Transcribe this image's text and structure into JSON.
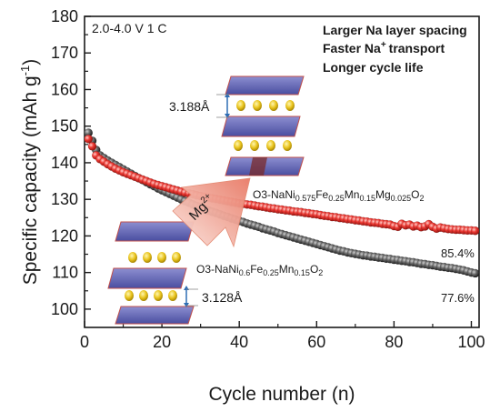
{
  "chart_data": {
    "type": "scatter",
    "xlabel": "Cycle number (n)",
    "ylabel": "Specific capacity (mAh g",
    "ylabel_sup": "-1",
    "ylabel_close": ")",
    "xlim": [
      0,
      102
    ],
    "ylim": [
      95,
      180
    ],
    "xticks": [
      0,
      20,
      40,
      60,
      80,
      100
    ],
    "yticks": [
      100,
      110,
      120,
      130,
      140,
      150,
      160,
      170,
      180
    ],
    "grid": false,
    "legend": "none",
    "series": [
      {
        "color": "#e8302e",
        "x": [
          1,
          2,
          3,
          4,
          5,
          6,
          7,
          8,
          9,
          10,
          11,
          12,
          13,
          14,
          15,
          16,
          17,
          18,
          19,
          20,
          21,
          22,
          23,
          24,
          25,
          26,
          27,
          28,
          29,
          30,
          31,
          32,
          33,
          34,
          35,
          36,
          37,
          38,
          39,
          40,
          41,
          42,
          43,
          44,
          45,
          46,
          47,
          48,
          49,
          50,
          51,
          52,
          53,
          54,
          55,
          56,
          57,
          58,
          59,
          60,
          61,
          62,
          63,
          64,
          65,
          66,
          67,
          68,
          69,
          70,
          71,
          72,
          73,
          74,
          75,
          76,
          77,
          78,
          79,
          80,
          81,
          82,
          83,
          84,
          85,
          86,
          87,
          88,
          89,
          90,
          91,
          92,
          93,
          94,
          95,
          96,
          97,
          98,
          99,
          100,
          101
        ],
        "y": [
          146.5,
          144.5,
          142.0,
          141.0,
          140.3,
          139.6,
          139.0,
          138.4,
          137.9,
          137.4,
          137.0,
          136.6,
          136.2,
          135.8,
          135.4,
          135.0,
          134.6,
          134.2,
          133.9,
          133.6,
          133.3,
          133.0,
          132.7,
          132.4,
          132.1,
          131.8,
          131.6,
          131.4,
          131.1,
          130.9,
          130.7,
          130.5,
          130.3,
          130.1,
          129.9,
          129.7,
          129.5,
          129.3,
          129.1,
          128.9,
          128.8,
          128.6,
          128.5,
          128.3,
          128.1,
          128.0,
          127.8,
          127.6,
          127.5,
          127.3,
          127.2,
          127.0,
          126.9,
          126.7,
          126.6,
          126.5,
          126.3,
          126.2,
          126.0,
          125.9,
          125.7,
          125.5,
          125.4,
          125.2,
          125.1,
          124.9,
          124.8,
          124.6,
          124.5,
          124.3,
          124.2,
          124.0,
          123.9,
          123.7,
          123.6,
          123.5,
          123.3,
          123.2,
          123.1,
          122.7,
          122.5,
          123.3,
          122.9,
          123.1,
          122.6,
          122.8,
          122.4,
          122.6,
          123.2,
          122.5,
          122.0,
          122.3,
          122.1,
          121.9,
          121.8,
          121.7,
          121.7,
          121.6,
          121.5,
          121.5,
          121.4
        ]
      },
      {
        "color": "#4a4a4a",
        "x": [
          1,
          2,
          3,
          4,
          5,
          6,
          7,
          8,
          9,
          10,
          11,
          12,
          13,
          14,
          15,
          16,
          17,
          18,
          19,
          20,
          21,
          22,
          23,
          24,
          25,
          26,
          27,
          28,
          29,
          30,
          31,
          32,
          33,
          34,
          35,
          36,
          37,
          38,
          39,
          40,
          41,
          42,
          43,
          44,
          45,
          46,
          47,
          48,
          49,
          50,
          51,
          52,
          53,
          54,
          55,
          56,
          57,
          58,
          59,
          60,
          61,
          62,
          63,
          64,
          65,
          66,
          67,
          68,
          69,
          70,
          71,
          72,
          73,
          74,
          75,
          76,
          77,
          78,
          79,
          80,
          81,
          82,
          83,
          84,
          85,
          86,
          87,
          88,
          89,
          90,
          91,
          92,
          93,
          94,
          95,
          96,
          97,
          98,
          99,
          100,
          101
        ],
        "y": [
          148.2,
          146.0,
          143.5,
          142.0,
          141.3,
          140.6,
          140.0,
          139.4,
          138.8,
          138.2,
          137.6,
          137.0,
          136.4,
          135.8,
          135.3,
          134.7,
          134.1,
          133.6,
          133.0,
          132.5,
          132.0,
          131.5,
          131.0,
          130.5,
          130.0,
          129.5,
          129.1,
          128.6,
          128.2,
          127.8,
          127.4,
          127.0,
          126.6,
          126.3,
          125.9,
          125.5,
          125.2,
          124.8,
          124.5,
          124.1,
          123.8,
          123.4,
          123.1,
          122.8,
          122.5,
          122.1,
          121.8,
          121.5,
          121.2,
          120.8,
          120.5,
          120.2,
          119.9,
          119.6,
          119.3,
          119.0,
          118.7,
          118.4,
          118.1,
          117.8,
          117.5,
          117.2,
          116.9,
          116.6,
          116.3,
          116.0,
          115.8,
          115.5,
          115.3,
          115.1,
          114.9,
          114.7,
          114.6,
          114.4,
          114.3,
          114.1,
          114.0,
          113.8,
          113.7,
          113.5,
          113.4,
          113.2,
          113.1,
          112.9,
          112.8,
          112.6,
          112.4,
          112.3,
          112.1,
          112.0,
          111.8,
          111.6,
          111.5,
          111.3,
          111.2,
          111.0,
          110.8,
          110.6,
          110.3,
          110.0,
          109.8
        ]
      }
    ]
  },
  "annotations": {
    "condition": "2.0-4.0 V 1 C",
    "claims": [
      "Larger Na layer spacing",
      "Faster Na",
      "transport",
      "Longer cycle life"
    ],
    "claim_sup": "+",
    "arrow_label": "Mg",
    "arrow_label_sup": "2+",
    "doped_formula": {
      "prefix": "O3-NaNi",
      "ni": "0.575",
      "fe_label": "Fe",
      "fe": "0.25",
      "mn_label": "Mn",
      "mn": "0.15",
      "mg_label": "Mg",
      "mg": "0.025",
      "o_label": "O",
      "o": "2"
    },
    "pristine_formula": {
      "prefix": "O3-NaNi",
      "ni": "0.6",
      "fe_label": "Fe",
      "fe": "0.25",
      "mn_label": "Mn",
      "mn": "0.15",
      "o_label": "O",
      "o": "2"
    },
    "spacing_top": "3.188Å",
    "spacing_bottom": "3.128Å",
    "retention_red": "85.4%",
    "retention_black": "77.6%"
  }
}
